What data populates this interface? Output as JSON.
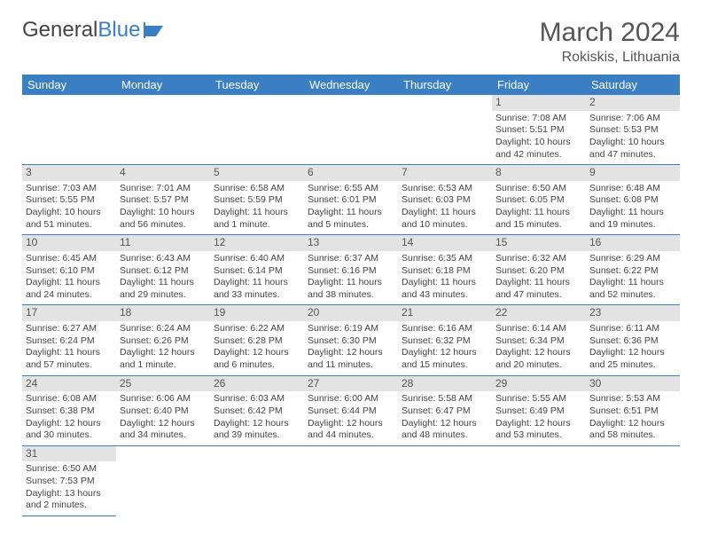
{
  "logo": {
    "text1": "General",
    "text2": "Blue"
  },
  "header": {
    "month": "March 2024",
    "location": "Rokiskis, Lithuania"
  },
  "colors": {
    "accent": "#3a7fc4",
    "dayHeaderBg": "#e3e3e3",
    "text": "#444"
  },
  "dayNames": [
    "Sunday",
    "Monday",
    "Tuesday",
    "Wednesday",
    "Thursday",
    "Friday",
    "Saturday"
  ],
  "startOffset": 5,
  "days": [
    {
      "n": 1,
      "sr": "7:08 AM",
      "ss": "5:51 PM",
      "dl": "10 hours and 42 minutes."
    },
    {
      "n": 2,
      "sr": "7:06 AM",
      "ss": "5:53 PM",
      "dl": "10 hours and 47 minutes."
    },
    {
      "n": 3,
      "sr": "7:03 AM",
      "ss": "5:55 PM",
      "dl": "10 hours and 51 minutes."
    },
    {
      "n": 4,
      "sr": "7:01 AM",
      "ss": "5:57 PM",
      "dl": "10 hours and 56 minutes."
    },
    {
      "n": 5,
      "sr": "6:58 AM",
      "ss": "5:59 PM",
      "dl": "11 hours and 1 minute."
    },
    {
      "n": 6,
      "sr": "6:55 AM",
      "ss": "6:01 PM",
      "dl": "11 hours and 5 minutes."
    },
    {
      "n": 7,
      "sr": "6:53 AM",
      "ss": "6:03 PM",
      "dl": "11 hours and 10 minutes."
    },
    {
      "n": 8,
      "sr": "6:50 AM",
      "ss": "6:05 PM",
      "dl": "11 hours and 15 minutes."
    },
    {
      "n": 9,
      "sr": "6:48 AM",
      "ss": "6:08 PM",
      "dl": "11 hours and 19 minutes."
    },
    {
      "n": 10,
      "sr": "6:45 AM",
      "ss": "6:10 PM",
      "dl": "11 hours and 24 minutes."
    },
    {
      "n": 11,
      "sr": "6:43 AM",
      "ss": "6:12 PM",
      "dl": "11 hours and 29 minutes."
    },
    {
      "n": 12,
      "sr": "6:40 AM",
      "ss": "6:14 PM",
      "dl": "11 hours and 33 minutes."
    },
    {
      "n": 13,
      "sr": "6:37 AM",
      "ss": "6:16 PM",
      "dl": "11 hours and 38 minutes."
    },
    {
      "n": 14,
      "sr": "6:35 AM",
      "ss": "6:18 PM",
      "dl": "11 hours and 43 minutes."
    },
    {
      "n": 15,
      "sr": "6:32 AM",
      "ss": "6:20 PM",
      "dl": "11 hours and 47 minutes."
    },
    {
      "n": 16,
      "sr": "6:29 AM",
      "ss": "6:22 PM",
      "dl": "11 hours and 52 minutes."
    },
    {
      "n": 17,
      "sr": "6:27 AM",
      "ss": "6:24 PM",
      "dl": "11 hours and 57 minutes."
    },
    {
      "n": 18,
      "sr": "6:24 AM",
      "ss": "6:26 PM",
      "dl": "12 hours and 1 minute."
    },
    {
      "n": 19,
      "sr": "6:22 AM",
      "ss": "6:28 PM",
      "dl": "12 hours and 6 minutes."
    },
    {
      "n": 20,
      "sr": "6:19 AM",
      "ss": "6:30 PM",
      "dl": "12 hours and 11 minutes."
    },
    {
      "n": 21,
      "sr": "6:16 AM",
      "ss": "6:32 PM",
      "dl": "12 hours and 15 minutes."
    },
    {
      "n": 22,
      "sr": "6:14 AM",
      "ss": "6:34 PM",
      "dl": "12 hours and 20 minutes."
    },
    {
      "n": 23,
      "sr": "6:11 AM",
      "ss": "6:36 PM",
      "dl": "12 hours and 25 minutes."
    },
    {
      "n": 24,
      "sr": "6:08 AM",
      "ss": "6:38 PM",
      "dl": "12 hours and 30 minutes."
    },
    {
      "n": 25,
      "sr": "6:06 AM",
      "ss": "6:40 PM",
      "dl": "12 hours and 34 minutes."
    },
    {
      "n": 26,
      "sr": "6:03 AM",
      "ss": "6:42 PM",
      "dl": "12 hours and 39 minutes."
    },
    {
      "n": 27,
      "sr": "6:00 AM",
      "ss": "6:44 PM",
      "dl": "12 hours and 44 minutes."
    },
    {
      "n": 28,
      "sr": "5:58 AM",
      "ss": "6:47 PM",
      "dl": "12 hours and 48 minutes."
    },
    {
      "n": 29,
      "sr": "5:55 AM",
      "ss": "6:49 PM",
      "dl": "12 hours and 53 minutes."
    },
    {
      "n": 30,
      "sr": "5:53 AM",
      "ss": "6:51 PM",
      "dl": "12 hours and 58 minutes."
    },
    {
      "n": 31,
      "sr": "6:50 AM",
      "ss": "7:53 PM",
      "dl": "13 hours and 2 minutes."
    }
  ],
  "labels": {
    "sunrise": "Sunrise:",
    "sunset": "Sunset:",
    "daylight": "Daylight:"
  }
}
